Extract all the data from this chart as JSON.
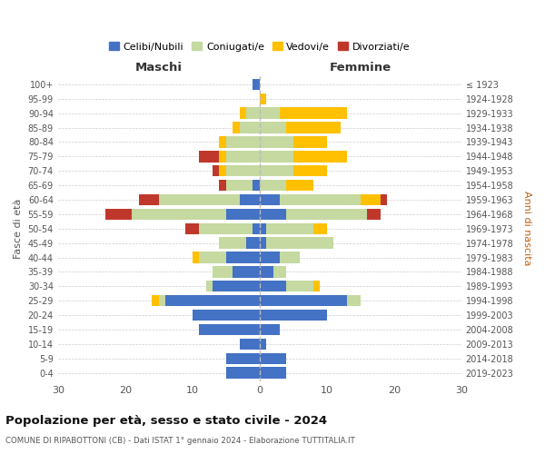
{
  "age_groups": [
    "0-4",
    "5-9",
    "10-14",
    "15-19",
    "20-24",
    "25-29",
    "30-34",
    "35-39",
    "40-44",
    "45-49",
    "50-54",
    "55-59",
    "60-64",
    "65-69",
    "70-74",
    "75-79",
    "80-84",
    "85-89",
    "90-94",
    "95-99",
    "100+"
  ],
  "birth_years": [
    "2019-2023",
    "2014-2018",
    "2009-2013",
    "2004-2008",
    "1999-2003",
    "1994-1998",
    "1989-1993",
    "1984-1988",
    "1979-1983",
    "1974-1978",
    "1969-1973",
    "1964-1968",
    "1959-1963",
    "1954-1958",
    "1949-1953",
    "1944-1948",
    "1939-1943",
    "1934-1938",
    "1929-1933",
    "1924-1928",
    "≤ 1923"
  ],
  "maschi": {
    "celibi": [
      5,
      5,
      3,
      9,
      10,
      14,
      7,
      4,
      5,
      2,
      1,
      5,
      3,
      1,
      0,
      0,
      0,
      0,
      0,
      0,
      1
    ],
    "coniugati": [
      0,
      0,
      0,
      0,
      0,
      1,
      1,
      3,
      4,
      4,
      8,
      14,
      12,
      4,
      5,
      5,
      5,
      3,
      2,
      0,
      0
    ],
    "vedovi": [
      0,
      0,
      0,
      0,
      0,
      1,
      0,
      0,
      1,
      0,
      0,
      0,
      0,
      0,
      1,
      1,
      1,
      1,
      1,
      0,
      0
    ],
    "divorziati": [
      0,
      0,
      0,
      0,
      0,
      0,
      0,
      0,
      0,
      0,
      2,
      4,
      3,
      1,
      1,
      3,
      0,
      0,
      0,
      0,
      0
    ]
  },
  "femmine": {
    "nubili": [
      4,
      4,
      1,
      3,
      10,
      13,
      4,
      2,
      3,
      1,
      1,
      4,
      3,
      0,
      0,
      0,
      0,
      0,
      0,
      0,
      0
    ],
    "coniugate": [
      0,
      0,
      0,
      0,
      0,
      2,
      4,
      2,
      3,
      10,
      7,
      12,
      12,
      4,
      5,
      5,
      5,
      4,
      3,
      0,
      0
    ],
    "vedove": [
      0,
      0,
      0,
      0,
      0,
      0,
      1,
      0,
      0,
      0,
      2,
      0,
      3,
      4,
      5,
      8,
      5,
      8,
      10,
      1,
      0
    ],
    "divorziate": [
      0,
      0,
      0,
      0,
      0,
      0,
      0,
      0,
      0,
      0,
      0,
      2,
      1,
      0,
      0,
      0,
      0,
      0,
      0,
      0,
      0
    ]
  },
  "colors": {
    "celibi": "#4472c4",
    "coniugati": "#c5d9a0",
    "vedovi": "#ffc000",
    "divorziati": "#c0372b"
  },
  "title": "Popolazione per età, sesso e stato civile - 2024",
  "subtitle": "COMUNE DI RIPABOTTONI (CB) - Dati ISTAT 1° gennaio 2024 - Elaborazione TUTTITALIA.IT",
  "xlabel_left": "Maschi",
  "xlabel_right": "Femmine",
  "ylabel_left": "Fasce di età",
  "ylabel_right": "Anni di nascita",
  "xlim": 30,
  "legend_labels": [
    "Celibi/Nubili",
    "Coniugati/e",
    "Vedovi/e",
    "Divorziati/e"
  ],
  "bg_color": "#ffffff",
  "grid_color": "#cccccc"
}
